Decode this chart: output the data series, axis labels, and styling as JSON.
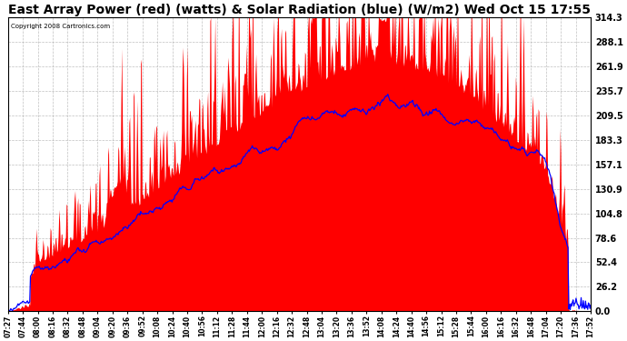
{
  "title": "East Array Power (red) (watts) & Solar Radiation (blue) (W/m2) Wed Oct 15 17:55",
  "copyright": "Copyright 2008 Cartronics.com",
  "ylabel_right": [
    "314.3",
    "288.1",
    "261.9",
    "235.7",
    "209.5",
    "183.3",
    "157.1",
    "130.9",
    "104.8",
    "78.6",
    "52.4",
    "26.2",
    "0.0"
  ],
  "yticks": [
    314.3,
    288.1,
    261.9,
    235.7,
    209.5,
    183.3,
    157.1,
    130.9,
    104.8,
    78.6,
    52.4,
    26.2,
    0.0
  ],
  "ylim": [
    0,
    314.3
  ],
  "xtick_labels": [
    "07:27",
    "07:44",
    "08:00",
    "08:16",
    "08:32",
    "08:48",
    "09:04",
    "09:20",
    "09:36",
    "09:52",
    "10:08",
    "10:24",
    "10:40",
    "10:56",
    "11:12",
    "11:28",
    "11:44",
    "12:00",
    "12:16",
    "12:32",
    "12:48",
    "13:04",
    "13:20",
    "13:36",
    "13:52",
    "14:08",
    "14:24",
    "14:40",
    "14:56",
    "15:12",
    "15:28",
    "15:44",
    "16:00",
    "16:16",
    "16:32",
    "16:48",
    "17:04",
    "17:20",
    "17:36",
    "17:52"
  ],
  "bg_color": "#ffffff",
  "fill_color": "#ff0000",
  "line_color": "#0000ff",
  "grid_color": "#b0b0b0",
  "title_font_size": 10,
  "seed": 12345
}
